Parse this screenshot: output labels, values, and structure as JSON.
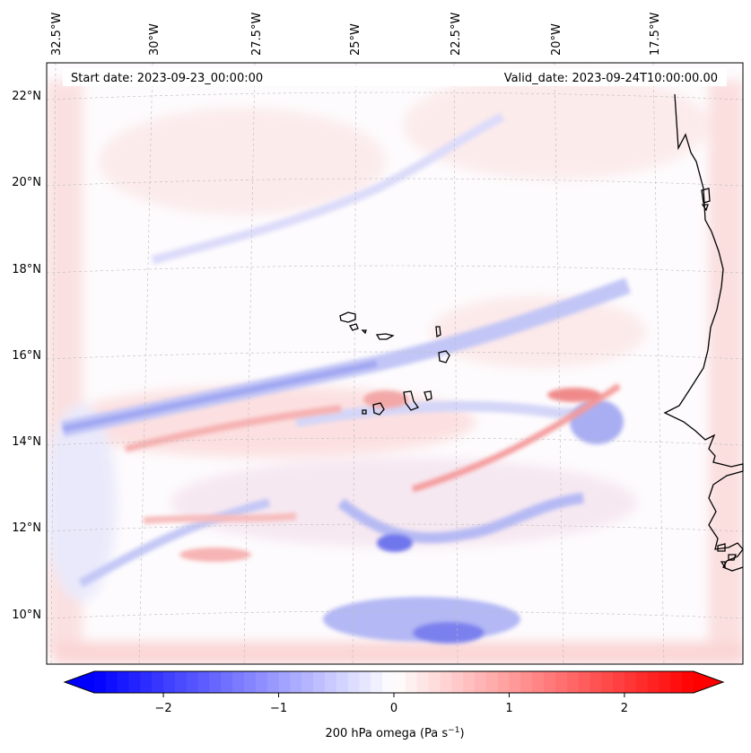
{
  "header": {
    "start_date": "Start date: 2023-09-23_00:00:00",
    "valid_date": "Valid_date: 2023-09-24T10:00:00.00"
  },
  "longitude_labels": [
    "32.5°W",
    "30°W",
    "27.5°W",
    "25°W",
    "22.5°W",
    "20°W",
    "17.5°W"
  ],
  "latitude_labels": [
    "22°N",
    "20°N",
    "18°N",
    "16°N",
    "14°N",
    "12°N",
    "10°N"
  ],
  "colorbar": {
    "tick_labels": [
      "−2",
      "−1",
      "0",
      "1",
      "2"
    ],
    "label_main": "200 hPa omega (Pa s",
    "label_exp": "−1",
    "label_close": ")",
    "low_color": "#0000ff",
    "mid_color": "#ffffff",
    "high_color": "#ff0000"
  },
  "chart_data": {
    "type": "heatmap",
    "variable": "200 hPa omega",
    "units": "Pa s−1",
    "value_range": [
      -2.6,
      2.6
    ],
    "colorbar_ticks": [
      -2,
      -1,
      0,
      1,
      2
    ],
    "colormap": "bwr",
    "lon_ticks_deg_w": [
      32.5,
      30,
      27.5,
      25,
      22.5,
      20,
      17.5
    ],
    "lat_ticks_deg_n": [
      22,
      20,
      18,
      16,
      14,
      12,
      10
    ],
    "gridlines": true
  }
}
